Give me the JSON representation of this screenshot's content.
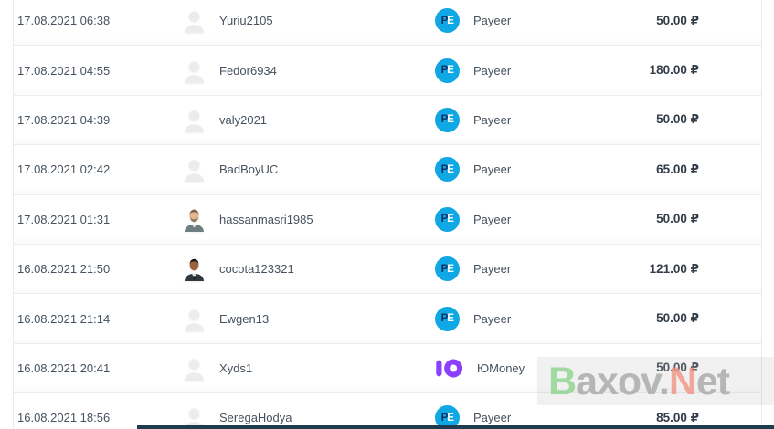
{
  "table": {
    "rows": [
      {
        "datetime": "17.08.2021 06:38",
        "username": "Yuriu2105",
        "method": "Payeer",
        "method_key": "payeer",
        "amount": "50.00 ₽",
        "avatar": "default"
      },
      {
        "datetime": "17.08.2021 04:55",
        "username": "Fedor6934",
        "method": "Payeer",
        "method_key": "payeer",
        "amount": "180.00 ₽",
        "avatar": "default"
      },
      {
        "datetime": "17.08.2021 04:39",
        "username": "valy2021",
        "method": "Payeer",
        "method_key": "payeer",
        "amount": "50.00 ₽",
        "avatar": "default"
      },
      {
        "datetime": "17.08.2021 02:42",
        "username": "BadBoyUC",
        "method": "Payeer",
        "method_key": "payeer",
        "amount": "65.00 ₽",
        "avatar": "default"
      },
      {
        "datetime": "17.08.2021 01:31",
        "username": "hassanmasri1985",
        "method": "Payeer",
        "method_key": "payeer",
        "amount": "50.00 ₽",
        "avatar": "man-beard"
      },
      {
        "datetime": "16.08.2021 21:50",
        "username": "cocota123321",
        "method": "Payeer",
        "method_key": "payeer",
        "amount": "121.00 ₽",
        "avatar": "man-dark-suit"
      },
      {
        "datetime": "16.08.2021 21:14",
        "username": "Ewgen13",
        "method": "Payeer",
        "method_key": "payeer",
        "amount": "50.00 ₽",
        "avatar": "default"
      },
      {
        "datetime": "16.08.2021 20:41",
        "username": "Xyds1",
        "method": "ЮMoney",
        "method_key": "yoomoney",
        "amount": "50.00 ₽",
        "avatar": "default"
      },
      {
        "datetime": "16.08.2021 18:56",
        "username": "SeregaHodya",
        "method": "Payeer",
        "method_key": "payeer",
        "amount": "85.00 ₽",
        "avatar": "default"
      }
    ]
  },
  "icons": {
    "payeer": {
      "letter_p": "P",
      "letter_e": "E",
      "bg": "#0fa7e4",
      "p_color": "#0b2e63",
      "e_color": "#ffffff"
    },
    "yoomoney": {
      "color": "#8b3ffd"
    }
  },
  "watermark": {
    "segments": [
      {
        "text": "B",
        "color": "#8bd48b"
      },
      {
        "text": "axov.",
        "color": "#a6a6a6"
      },
      {
        "text": "N",
        "color": "#f29180"
      },
      {
        "text": "et",
        "color": "#a6a6a6"
      }
    ]
  },
  "colors": {
    "row_border": "#ededf1",
    "table_border": "#e9e9ee",
    "text": "#46525f",
    "amount_text": "#333d49",
    "bottom_strip": "#1e3c4e"
  }
}
